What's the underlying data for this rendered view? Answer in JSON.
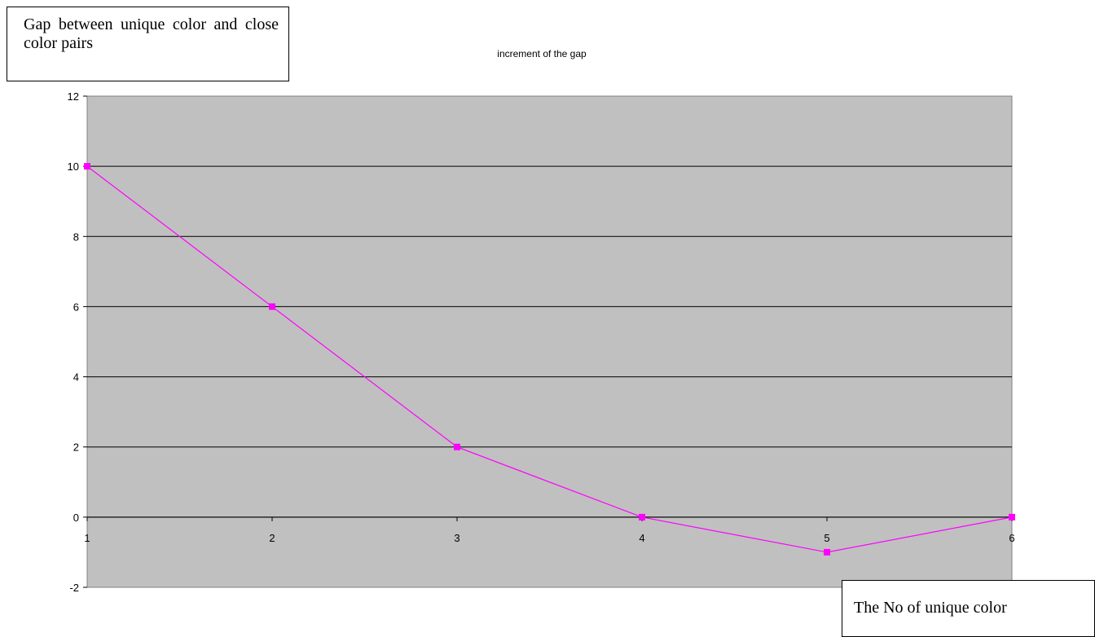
{
  "chart_data": {
    "type": "line",
    "title": "increment of the gap",
    "ylabel": "Gap between unique color and close color pairs",
    "xlabel": "The No of unique color",
    "x": [
      1,
      2,
      3,
      4,
      5,
      6
    ],
    "categories": [
      "1",
      "2",
      "3",
      "4",
      "5",
      "6"
    ],
    "series": [
      {
        "values": [
          10,
          6,
          2,
          0,
          -1,
          0
        ],
        "color": "#ff00ff"
      }
    ],
    "ylim": [
      -2,
      12
    ],
    "yticks": [
      "-2",
      "0",
      "2",
      "4",
      "6",
      "8",
      "10",
      "12"
    ],
    "grid": true,
    "plot_background": "#c0c0c0",
    "marker": "square"
  }
}
